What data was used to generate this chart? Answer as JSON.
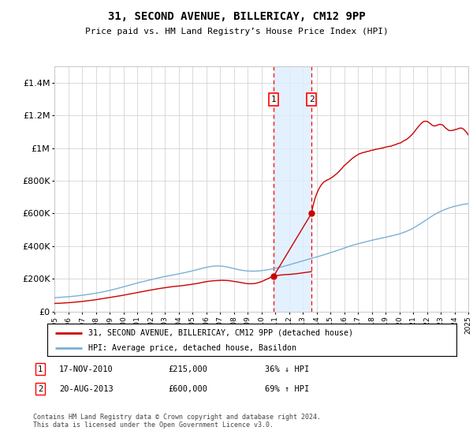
{
  "title": "31, SECOND AVENUE, BILLERICAY, CM12 9PP",
  "subtitle": "Price paid vs. HM Land Registry’s House Price Index (HPI)",
  "ylabel_ticks": [
    "£0",
    "£200K",
    "£400K",
    "£600K",
    "£800K",
    "£1M",
    "£1.2M",
    "£1.4M"
  ],
  "ylim": [
    0,
    1500000
  ],
  "yticks": [
    0,
    200000,
    400000,
    600000,
    800000,
    1000000,
    1200000,
    1400000
  ],
  "hpi_color": "#7ab0d4",
  "price_color": "#cc0000",
  "marker_color": "#cc0000",
  "sale1_year": 2010.88,
  "sale1_price": 215000,
  "sale2_year": 2013.63,
  "sale2_price": 600000,
  "legend_line1": "31, SECOND AVENUE, BILLERICAY, CM12 9PP (detached house)",
  "legend_line2": "HPI: Average price, detached house, Basildon",
  "table_row1_num": "1",
  "table_row1_date": "17-NOV-2010",
  "table_row1_price": "£215,000",
  "table_row1_hpi": "36% ↓ HPI",
  "table_row2_num": "2",
  "table_row2_date": "20-AUG-2013",
  "table_row2_price": "£600,000",
  "table_row2_hpi": "69% ↑ HPI",
  "footer": "Contains HM Land Registry data © Crown copyright and database right 2024.\nThis data is licensed under the Open Government Licence v3.0.",
  "background_color": "#ffffff",
  "grid_color": "#cccccc",
  "span_color": "#ddeeff"
}
